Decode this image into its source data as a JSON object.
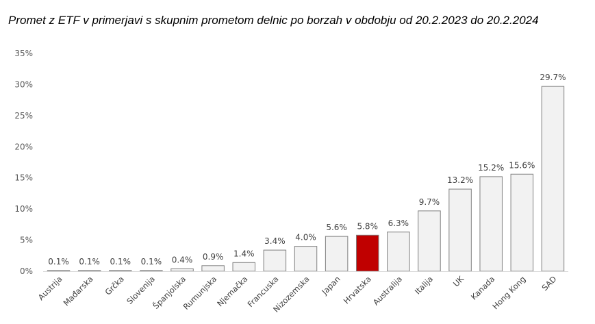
{
  "title": "Promet z ETF v primerjavi s skupnim prometom delnic po borzah v obdobju od 20.2.2023 do 20.2.2024",
  "chart_data": {
    "type": "bar",
    "title": "Promet z ETF v primerjavi s skupnim prometom delnic po borzah v obdobju od 20.2.2023 do 20.2.2024",
    "xlabel": "",
    "ylabel": "",
    "ylim": [
      0,
      35
    ],
    "ytick_values": [
      0,
      5,
      10,
      15,
      20,
      25,
      30,
      35
    ],
    "ytick_labels": [
      "0%",
      "5%",
      "10%",
      "15%",
      "20%",
      "25%",
      "30%",
      "35%"
    ],
    "grid": false,
    "categories": [
      "Austrija",
      "Mađarska",
      "Grčka",
      "Slovenija",
      "Španjolska",
      "Rumunjska",
      "Njemačka",
      "Francuska",
      "Nizozemska",
      "Japan",
      "Hrvatska",
      "Australija",
      "Italija",
      "UK",
      "Kanada",
      "Hong Kong",
      "SAD"
    ],
    "values": [
      0.1,
      0.1,
      0.1,
      0.1,
      0.4,
      0.9,
      1.4,
      3.4,
      4.0,
      5.6,
      5.8,
      6.3,
      9.7,
      13.2,
      15.2,
      15.6,
      29.7
    ],
    "data_labels": [
      "0.1%",
      "0.1%",
      "0.1%",
      "0.1%",
      "0.4%",
      "0.9%",
      "1.4%",
      "3.4%",
      "4.0%",
      "5.6%",
      "5.8%",
      "6.3%",
      "9.7%",
      "13.2%",
      "15.2%",
      "15.6%",
      "29.7%"
    ],
    "bar_color": "#f2f2f2",
    "bar_border_color": "#7f7f7f",
    "highlight_category": "Hrvatska",
    "highlight_color": "#c00000"
  }
}
